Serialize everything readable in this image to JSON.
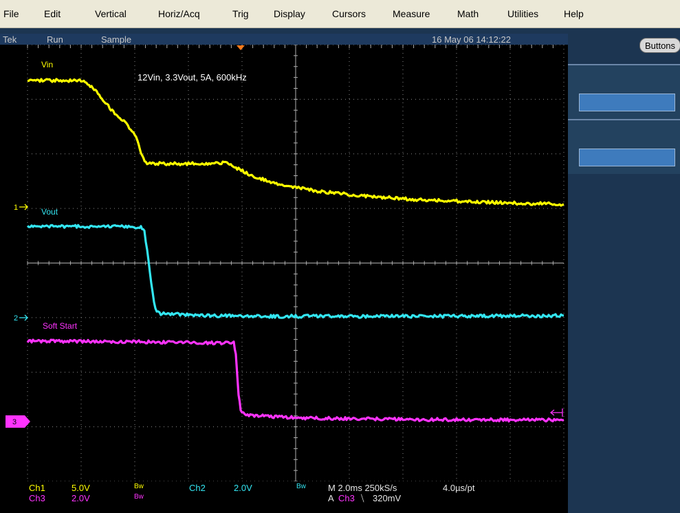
{
  "menu": [
    "File",
    "Edit",
    "Vertical",
    "Horiz/Acq",
    "Trig",
    "Display",
    "Cursors",
    "Measure",
    "Math",
    "Utilities",
    "Help"
  ],
  "status": {
    "brand": "Tek",
    "run": "Run",
    "mode": "Sample",
    "datetime": "16 May 06 14:12:22"
  },
  "side_panel": {
    "buttons_label": "Buttons"
  },
  "annotation": "12Vin, 3.3Vout, 5A, 600kHz",
  "channels": {
    "ch1": {
      "label": "Vin",
      "marker": "1",
      "color": "#ffff00"
    },
    "ch2": {
      "label": "Vout",
      "marker": "2",
      "color": "#33e6f2"
    },
    "ch3": {
      "label": "Soft Start",
      "marker": "3",
      "color": "#ff33ff"
    }
  },
  "readout": {
    "ch1_name": "Ch1",
    "ch1_scale": "5.0V",
    "ch1_bw": "Bw",
    "ch2_name": "Ch2",
    "ch2_scale": "2.0V",
    "ch2_bw": "Bw",
    "ch3_name": "Ch3",
    "ch3_scale": "2.0V",
    "ch3_bw": "Bw",
    "timebase": "M 2.0ms 250kS/s",
    "resolution": "4.0µs/pt",
    "trigger_prefix": "A",
    "trigger_source": "Ch3",
    "trigger_slope": "⧹",
    "trigger_level": "320mV"
  }
}
